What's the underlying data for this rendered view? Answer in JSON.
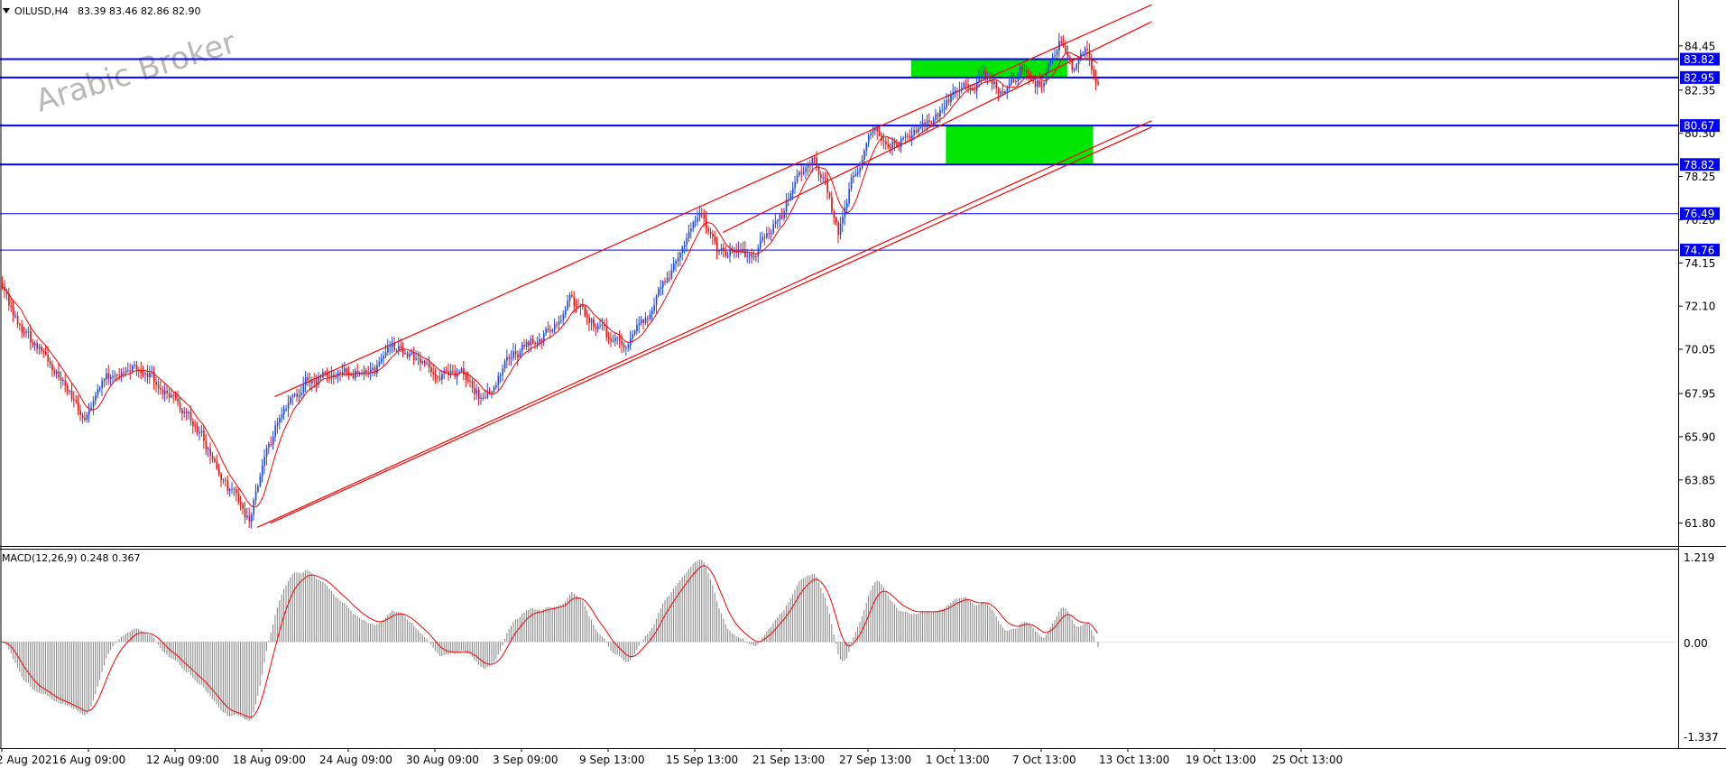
{
  "header": {
    "symbol_label": "OILUSD,H4",
    "ohlc_text": "83.39 83.46 82.86 82.90"
  },
  "watermark": "Arabic Broker",
  "macd": {
    "label": "MACD(12,26,9) 0.248 0.367",
    "ticks": [
      "1.219",
      "0.00",
      "-1.337"
    ],
    "range": [
      -1.337,
      1.219
    ]
  },
  "chart_data": {
    "type": "candlestick",
    "instrument": "OILUSD",
    "timeframe": "H4",
    "ylim": [
      60.8,
      85.6
    ],
    "y_ticks": [
      "84.45",
      "82.35",
      "80.30",
      "78.25",
      "76.20",
      "74.15",
      "72.10",
      "70.05",
      "67.95",
      "65.90",
      "63.85",
      "61.80"
    ],
    "x_ticks": [
      "2 Aug 2021",
      "6 Aug 09:00",
      "12 Aug 09:00",
      "18 Aug 09:00",
      "24 Aug 09:00",
      "30 Aug 09:00",
      "3 Sep 09:00",
      "9 Sep 13:00",
      "15 Sep 13:00",
      "21 Sep 13:00",
      "27 Sep 13:00",
      "1 Oct 13:00",
      "7 Oct 13:00",
      "13 Oct 13:00",
      "19 Oct 13:00",
      "25 Oct 13:00"
    ],
    "price_anchors": [
      [
        0,
        72.9
      ],
      [
        8,
        71.0
      ],
      [
        18,
        69.8
      ],
      [
        30,
        68.4
      ],
      [
        38,
        66.4
      ],
      [
        48,
        68.7
      ],
      [
        60,
        69.5
      ],
      [
        74,
        68.2
      ],
      [
        84,
        66.9
      ],
      [
        92,
        66.2
      ],
      [
        100,
        64.0
      ],
      [
        110,
        62.6
      ],
      [
        114,
        61.9
      ],
      [
        120,
        64.5
      ],
      [
        128,
        66.8
      ],
      [
        140,
        68.6
      ],
      [
        156,
        68.9
      ],
      [
        172,
        69.0
      ],
      [
        180,
        70.1
      ],
      [
        188,
        69.8
      ],
      [
        196,
        69.1
      ],
      [
        212,
        68.9
      ],
      [
        222,
        67.6
      ],
      [
        232,
        69.4
      ],
      [
        248,
        70.8
      ],
      [
        256,
        71.0
      ],
      [
        262,
        72.4
      ],
      [
        270,
        71.7
      ],
      [
        282,
        70.3
      ],
      [
        290,
        70.5
      ],
      [
        300,
        72.1
      ],
      [
        314,
        74.9
      ],
      [
        322,
        76.3
      ],
      [
        330,
        74.8
      ],
      [
        346,
        74.5
      ],
      [
        360,
        76.4
      ],
      [
        368,
        78.6
      ],
      [
        374,
        79.2
      ],
      [
        380,
        77.9
      ],
      [
        386,
        75.4
      ],
      [
        392,
        78.0
      ],
      [
        402,
        80.4
      ],
      [
        410,
        79.9
      ],
      [
        418,
        80.2
      ],
      [
        430,
        80.9
      ],
      [
        440,
        82.4
      ],
      [
        454,
        82.9
      ],
      [
        462,
        82.1
      ],
      [
        470,
        83.4
      ],
      [
        480,
        82.6
      ],
      [
        488,
        84.5
      ],
      [
        494,
        83.2
      ],
      [
        500,
        84.3
      ],
      [
        506,
        82.9
      ]
    ],
    "ma_lag": 9,
    "levels": [
      {
        "value": 83.82,
        "label": "83.82",
        "thick": true
      },
      {
        "value": 82.95,
        "label": "82.95",
        "thick": true
      },
      {
        "value": 80.67,
        "label": "80.67",
        "thick": true
      },
      {
        "value": 78.82,
        "label": "78.82",
        "thick": true
      },
      {
        "value": 76.49,
        "label": "76.49",
        "thick": false
      },
      {
        "value": 74.76,
        "label": "74.76",
        "thick": false
      }
    ],
    "zones": [
      {
        "bars": [
          420,
          492
        ],
        "prices": [
          82.95,
          83.82
        ]
      },
      {
        "bars": [
          436,
          504
        ],
        "prices": [
          78.82,
          80.67
        ]
      }
    ],
    "channels": [
      [
        [
          126,
          67.8
        ],
        [
          531,
          86.4
        ]
      ],
      [
        [
          124,
          61.8
        ],
        [
          531,
          80.6
        ]
      ],
      [
        [
          118,
          61.6
        ],
        [
          531,
          80.9
        ]
      ],
      [
        [
          333,
          75.6
        ],
        [
          531,
          85.6
        ]
      ]
    ],
    "n_bars": 507,
    "colors": {
      "up_candle": "#1f47e6",
      "down_candle": "#e60f0f",
      "moving_average": "#ff0000",
      "level_line": "#0000ff",
      "level_tag_bg": "#0000ff",
      "zone_fill": "#00e600",
      "channel_line": "#ff0000",
      "macd_histogram": "#808080",
      "macd_signal": "#ff0000",
      "grid": "#000000"
    }
  }
}
